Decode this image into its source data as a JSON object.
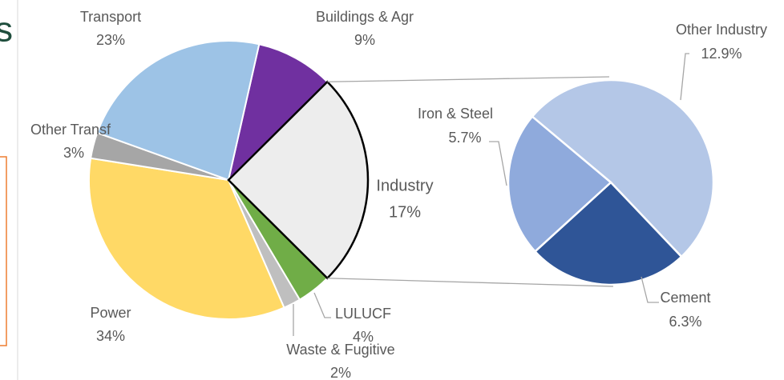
{
  "page_fragment": "s",
  "chart_data": {
    "type": "pie-of-pie",
    "categories": [
      "Buildings & Agr",
      "Industry",
      "LULUCF",
      "Waste & Fugitive",
      "Power",
      "Other Transf",
      "Transport"
    ],
    "values": [
      9,
      17,
      4,
      2,
      34,
      3,
      23
    ],
    "value_labels": [
      "9%",
      "17%",
      "4%",
      "2%",
      "34%",
      "3%",
      "23%"
    ],
    "colors": [
      "#7030a0",
      "#ededed",
      "#70ad47",
      "#bfbfbf",
      "#ffd966",
      "#a6a6a6",
      "#9dc3e6"
    ],
    "secondary": {
      "categories": [
        "Other Industry",
        "Cement",
        "Iron & Steel"
      ],
      "values": [
        12.9,
        6.3,
        5.7
      ],
      "value_labels": [
        "12.9%",
        "6.3%",
        "5.7%"
      ],
      "colors": [
        "#b4c7e7",
        "#2f5597",
        "#8faadc"
      ]
    }
  }
}
